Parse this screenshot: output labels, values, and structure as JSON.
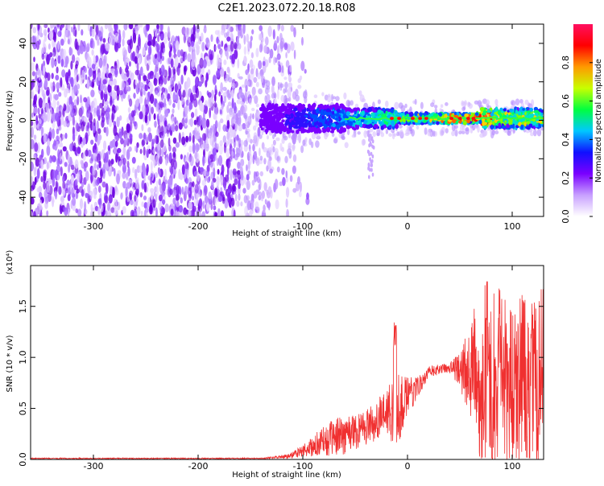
{
  "title": "C2E1.2023.072.20.18.R08",
  "chart_data": [
    {
      "type": "heatmap",
      "name": "spectrogram",
      "xlabel": "Height of straight line (km)",
      "ylabel": "Frequency (Hz)",
      "xlim": [
        -360,
        130
      ],
      "ylim": [
        -50,
        50
      ],
      "xticks": [
        -300,
        -200,
        -100,
        0,
        100
      ],
      "yticks": [
        -40,
        -20,
        0,
        20,
        40
      ],
      "colorbar": {
        "label": "Normalized spectral amplitude",
        "ticks": [
          0.0,
          0.2,
          0.4,
          0.6,
          0.8
        ],
        "tick_labels": [
          "0.0",
          "0.2",
          "0.4",
          "0.6",
          "0.8"
        ],
        "range": [
          0,
          1
        ],
        "colors": [
          "#ffffff",
          "#c8a0ff",
          "#7a00ff",
          "#1010ff",
          "#00c8ff",
          "#00ff40",
          "#c8ff00",
          "#ff9a00",
          "#ff0000",
          "#ff1060"
        ]
      },
      "features": {
        "noise_region_x": [
          -360,
          -110
        ],
        "signal_band_start_x": -140,
        "signal_center_hz": 1
      }
    },
    {
      "type": "line",
      "name": "snr",
      "xlabel": "Height of straight line (km)",
      "ylabel": "SNR (10 * v/v)",
      "y_scale_label": "(x10⁴)",
      "xlim": [
        -360,
        130
      ],
      "ylim": [
        0,
        1.9
      ],
      "xticks": [
        -300,
        -200,
        -100,
        0,
        100
      ],
      "yticks": [
        0.0,
        0.5,
        1.0,
        1.5
      ],
      "ytick_labels": [
        "0.0",
        "0.5",
        "1.0",
        "1.5"
      ],
      "series_color": "#f03030",
      "envelope": {
        "x": [
          -360,
          -140,
          -115,
          -100,
          -80,
          -60,
          -40,
          -20,
          -10,
          0,
          10,
          20,
          30,
          40,
          50,
          60,
          70,
          80,
          90,
          100,
          110,
          120,
          130
        ],
        "mean": [
          0.01,
          0.01,
          0.03,
          0.08,
          0.18,
          0.25,
          0.32,
          0.45,
          0.5,
          0.6,
          0.72,
          0.85,
          0.88,
          0.9,
          0.88,
          0.85,
          0.8,
          0.78,
          0.75,
          0.7,
          0.72,
          0.74,
          0.8
        ],
        "amp": [
          0.005,
          0.005,
          0.02,
          0.06,
          0.15,
          0.2,
          0.18,
          0.22,
          0.4,
          0.2,
          0.1,
          0.06,
          0.05,
          0.05,
          0.18,
          0.5,
          0.9,
          1.0,
          0.9,
          0.8,
          0.9,
          0.85,
          0.9
        ]
      }
    }
  ]
}
